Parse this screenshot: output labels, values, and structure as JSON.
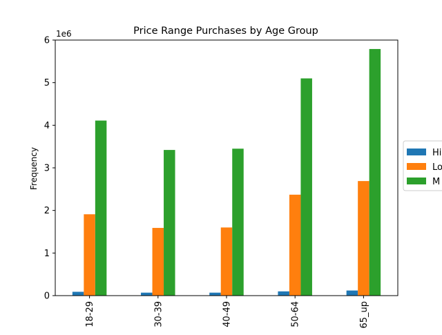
{
  "chart_data": {
    "type": "bar",
    "title": "Price Range Purchases by Age Group",
    "xlabel": "",
    "ylabel": "Frequency",
    "scale_label": "1e6",
    "categories": [
      "18-29",
      "30-39",
      "40-49",
      "50-64",
      "65_up"
    ],
    "ylim": [
      0,
      6000000
    ],
    "y_ticks": [
      0,
      1000000,
      2000000,
      3000000,
      4000000,
      5000000,
      6000000
    ],
    "y_tick_labels": [
      "0",
      "1",
      "2",
      "3",
      "4",
      "5",
      "6"
    ],
    "grid": false,
    "legend_position": "right, clipped at figure edge",
    "series": [
      {
        "name": "Hi",
        "color": "#1f77b4",
        "values": [
          90000,
          70000,
          70000,
          100000,
          120000
        ]
      },
      {
        "name": "Lo",
        "color": "#ff7f0e",
        "values": [
          1910000,
          1590000,
          1600000,
          2370000,
          2690000
        ]
      },
      {
        "name": "M",
        "color": "#2ca02c",
        "values": [
          4110000,
          3420000,
          3450000,
          5100000,
          5790000
        ]
      }
    ]
  }
}
